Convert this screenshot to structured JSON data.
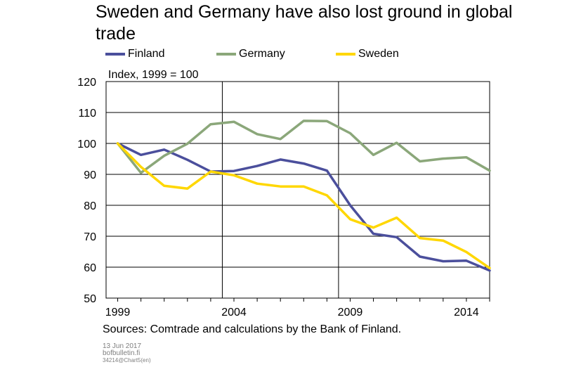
{
  "title": "Sweden and Germany have also lost ground in global trade",
  "sources": "Sources: Comtrade and calculations by the Bank of Finland.",
  "footer": {
    "date": "13 Jun 2017",
    "site": "bofbulletin.fi",
    "code": "34214@Chart5(en)"
  },
  "chart_data": {
    "type": "line",
    "ylabel": "Index, 1999 = 100",
    "ylim": [
      50,
      120
    ],
    "yticks": [
      50,
      60,
      70,
      80,
      90,
      100,
      110,
      120
    ],
    "xlim": [
      1998.5,
      2015
    ],
    "xticks": [
      1999,
      2004,
      2009,
      2014
    ],
    "vgrid": [
      2003.5,
      2008.5
    ],
    "grid": true,
    "legend_position": "top",
    "x": [
      1999,
      2000,
      2001,
      2002,
      2003,
      2004,
      2005,
      2006,
      2007,
      2008,
      2009,
      2010,
      2011,
      2012,
      2013,
      2014,
      2015
    ],
    "series": [
      {
        "name": "Finland",
        "color": "#4b4f9c",
        "values": [
          100,
          96.3,
          98,
          94.7,
          90.9,
          91.1,
          92.7,
          94.8,
          93.5,
          91.2,
          80,
          70.8,
          69.7,
          63.4,
          61.9,
          62.1,
          58.9
        ]
      },
      {
        "name": "Germany",
        "color": "#8ba77a",
        "values": [
          100,
          90.5,
          96,
          99.9,
          106.2,
          107,
          103,
          101.4,
          107.3,
          107.2,
          103.3,
          96.3,
          100.2,
          94.2,
          95.1,
          95.5,
          91.2
        ]
      },
      {
        "name": "Sweden",
        "color": "#ffd700",
        "values": [
          100,
          92.4,
          86.3,
          85.4,
          90.9,
          89.7,
          87,
          86.1,
          86.1,
          83.2,
          75.5,
          72.8,
          76,
          69.4,
          68.6,
          64.9,
          59.7
        ]
      }
    ]
  }
}
